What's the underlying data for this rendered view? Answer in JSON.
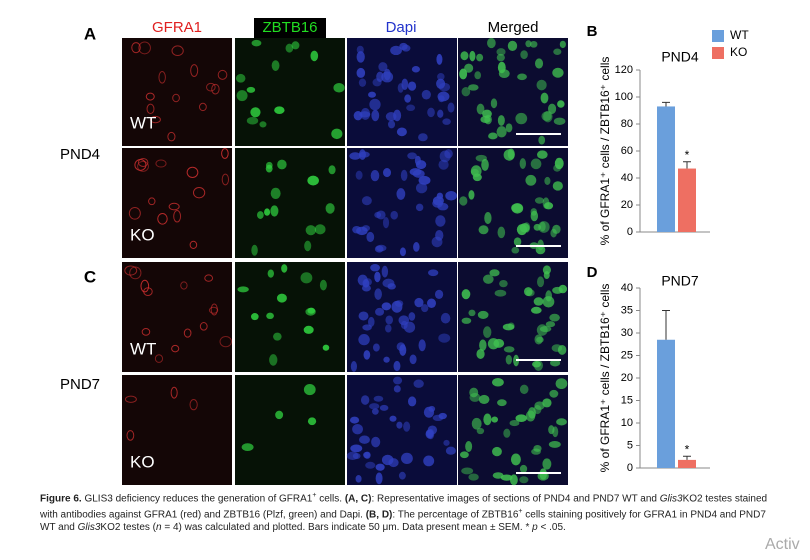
{
  "figure": {
    "panel_labels": {
      "A": "A",
      "C": "C"
    },
    "column_headers": [
      "GFRA1",
      "ZBTB16",
      "Dapi",
      "Merged"
    ],
    "row_groups": [
      "PND4",
      "PND7"
    ],
    "row_labels": [
      "WT",
      "KO",
      "WT",
      "KO"
    ],
    "caption": [
      {
        "text": "Figure 6.",
        "style": "bold"
      },
      {
        "text": " GLIS3 deficiency reduces the generation of GFRA1",
        "style": "normal"
      },
      {
        "text": "+",
        "style": "sup"
      },
      {
        "text": " cells. ",
        "style": "normal"
      },
      {
        "text": "(A, C)",
        "style": "bold"
      },
      {
        "text": ": Representative images of sections of PND4 and PND7 WT and ",
        "style": "normal"
      },
      {
        "text": "Glis3",
        "style": "italic"
      },
      {
        "text": "KO2 testes stained with antibodies against GFRA1 (red) and ZBTB16 (Plzf, green) and Dapi. ",
        "style": "normal"
      },
      {
        "text": "(B, D)",
        "style": "bold"
      },
      {
        "text": ": The percentage of ZBTB16",
        "style": "normal"
      },
      {
        "text": "+",
        "style": "sup"
      },
      {
        "text": " cells staining positively for GFRA1 in PND4 and PND7 WT and ",
        "style": "normal"
      },
      {
        "text": "Glis3",
        "style": "italic"
      },
      {
        "text": "KO2 testes (",
        "style": "normal"
      },
      {
        "text": "n",
        "style": "italic"
      },
      {
        "text": " = 4) was calculated and plotted. Bars indicate 50 μm. Data present mean ± SEM. * ",
        "style": "normal"
      },
      {
        "text": "p",
        "style": "italic"
      },
      {
        "text": " < .05.",
        "style": "normal"
      }
    ],
    "watermark": "Activ"
  },
  "chart_data": [
    {
      "type": "bar",
      "label": "B",
      "title": "PND4",
      "y_label": "% of GFRA1⁺ cells / ZBTB16⁺ cells",
      "ylim": [
        0,
        120
      ],
      "yticks": [
        0,
        20,
        40,
        60,
        80,
        100,
        120
      ],
      "legend": "top-right",
      "annotation": "*",
      "series": [
        {
          "name": "WT",
          "color": "#6a9fdc",
          "values": [
            93
          ],
          "errors": [
            3
          ]
        },
        {
          "name": "KO",
          "color": "#ee6f62",
          "values": [
            47
          ],
          "errors": [
            5
          ]
        }
      ]
    },
    {
      "type": "bar",
      "label": "D",
      "title": "PND7",
      "y_label": "% of GFRA1⁺ cells / ZBTB16⁺ cells",
      "ylim": [
        0,
        40
      ],
      "yticks": [
        0,
        5,
        10,
        15,
        20,
        25,
        30,
        35,
        40
      ],
      "annotation": "*",
      "series": [
        {
          "color": "#6a9fdc",
          "values": [
            28.5
          ],
          "errors": [
            6.5
          ]
        },
        {
          "color": "#ee6f62",
          "values": [
            1.8
          ],
          "errors": [
            0.8
          ]
        }
      ]
    }
  ]
}
